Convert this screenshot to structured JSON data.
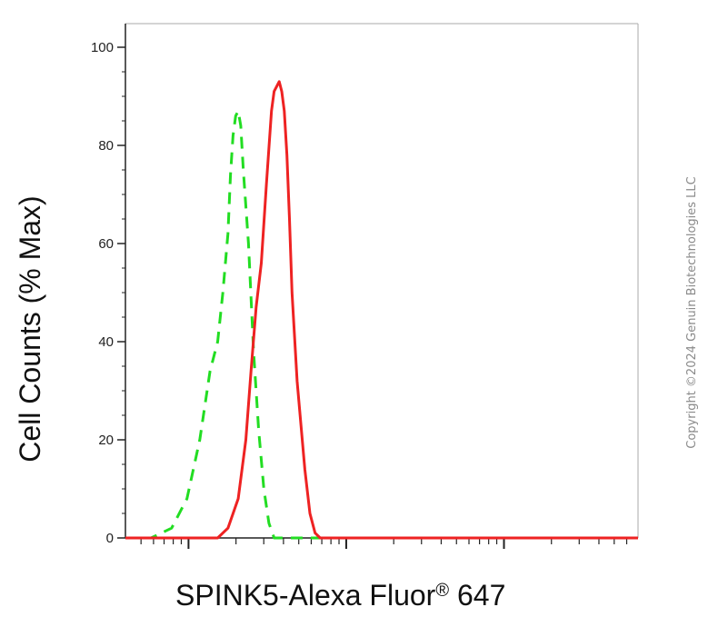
{
  "chart_data": {
    "type": "line",
    "xlabel_main": "SPINK5-Alexa Fluor",
    "xlabel_mark": "®",
    "xlabel_suffix": " 647",
    "ylabel": "Cell Counts (% Max)",
    "ylim": [
      0,
      100
    ],
    "xlim": [
      0,
      1
    ],
    "x_scale": "log",
    "yticks": [
      0,
      20,
      40,
      60,
      80,
      100
    ],
    "ytick_labels": [
      "0",
      "20",
      "40",
      "60",
      "80",
      "100"
    ],
    "grid": false,
    "legend": "none",
    "series": [
      {
        "color": "#22dd22",
        "style": "dashed",
        "x": [
          0.0,
          0.05,
          0.09,
          0.12,
          0.145,
          0.165,
          0.18,
          0.19,
          0.2,
          0.205,
          0.21,
          0.215,
          0.22,
          0.225,
          0.23,
          0.24,
          0.25,
          0.26,
          0.27,
          0.28,
          0.29,
          0.3,
          0.6,
          1.0
        ],
        "y": [
          0,
          0,
          2,
          8,
          20,
          34,
          40,
          50,
          62,
          74,
          82,
          86,
          87,
          84,
          75,
          60,
          38,
          22,
          10,
          3,
          0,
          0,
          0,
          0
        ]
      },
      {
        "color": "#ee2222",
        "style": "solid",
        "x": [
          0.0,
          0.18,
          0.2,
          0.22,
          0.235,
          0.245,
          0.255,
          0.265,
          0.275,
          0.285,
          0.29,
          0.295,
          0.3,
          0.305,
          0.31,
          0.315,
          0.32,
          0.325,
          0.335,
          0.35,
          0.36,
          0.37,
          0.38,
          0.39,
          0.6,
          1.0
        ],
        "y": [
          0,
          0,
          2,
          8,
          20,
          34,
          47,
          56,
          72,
          87,
          91,
          92,
          93,
          91,
          87,
          78,
          65,
          50,
          32,
          14,
          5,
          1,
          0,
          0,
          0,
          0
        ]
      }
    ]
  },
  "watermark": {
    "copyright_text": "Copyright ©2024 Genuin Biotechnologies LLC"
  }
}
